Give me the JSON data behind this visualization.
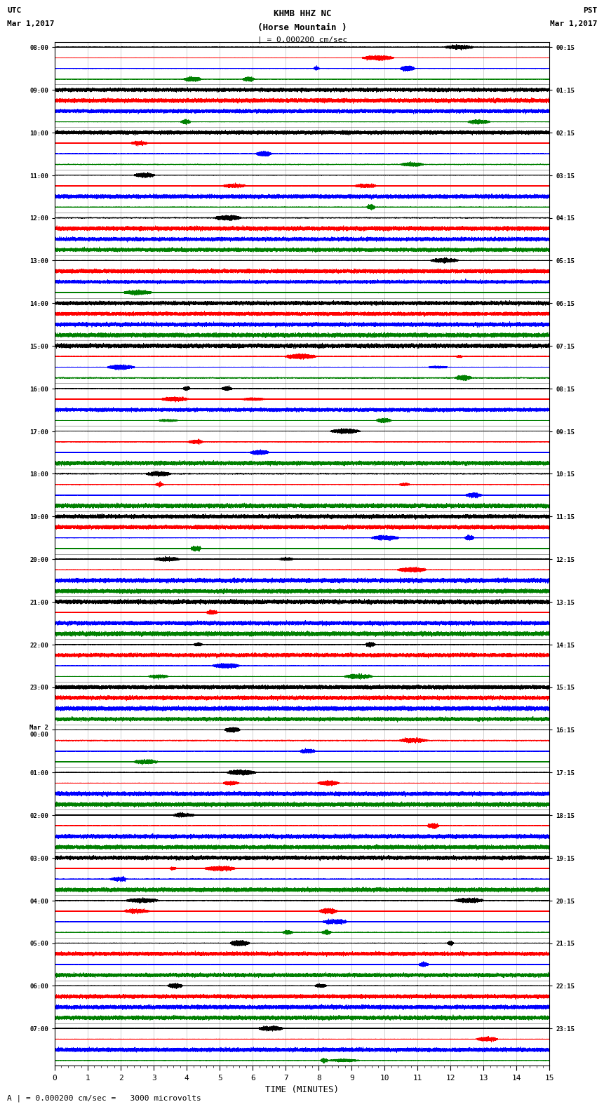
{
  "title_line1": "KHMB HHZ NC",
  "title_line2": "(Horse Mountain )",
  "title_line3": "| = 0.000200 cm/sec",
  "utc_label": "UTC",
  "utc_date": "Mar 1,2017",
  "pst_label": "PST",
  "pst_date": "Mar 1,2017",
  "xlabel": "TIME (MINUTES)",
  "footer": "A | = 0.000200 cm/sec =   3000 microvolts",
  "left_times_utc": [
    "08:00",
    "09:00",
    "10:00",
    "11:00",
    "12:00",
    "13:00",
    "14:00",
    "15:00",
    "16:00",
    "17:00",
    "18:00",
    "19:00",
    "20:00",
    "21:00",
    "22:00",
    "23:00",
    "Mar 2\n00:00",
    "01:00",
    "02:00",
    "03:00",
    "04:00",
    "05:00",
    "06:00",
    "07:00"
  ],
  "right_times_pst": [
    "00:15",
    "01:15",
    "02:15",
    "03:15",
    "04:15",
    "05:15",
    "06:15",
    "07:15",
    "08:15",
    "09:15",
    "10:15",
    "11:15",
    "12:15",
    "13:15",
    "14:15",
    "15:15",
    "16:15",
    "17:15",
    "18:15",
    "19:15",
    "20:15",
    "21:15",
    "22:15",
    "23:15"
  ],
  "num_rows": 24,
  "traces_per_row": 4,
  "minutes": 15,
  "sample_rate": 40,
  "colors": [
    "black",
    "red",
    "blue",
    "green"
  ],
  "amplitude_scale": 0.28,
  "background_color": "white",
  "line_width": 0.5,
  "fig_width": 8.5,
  "fig_height": 16.13
}
